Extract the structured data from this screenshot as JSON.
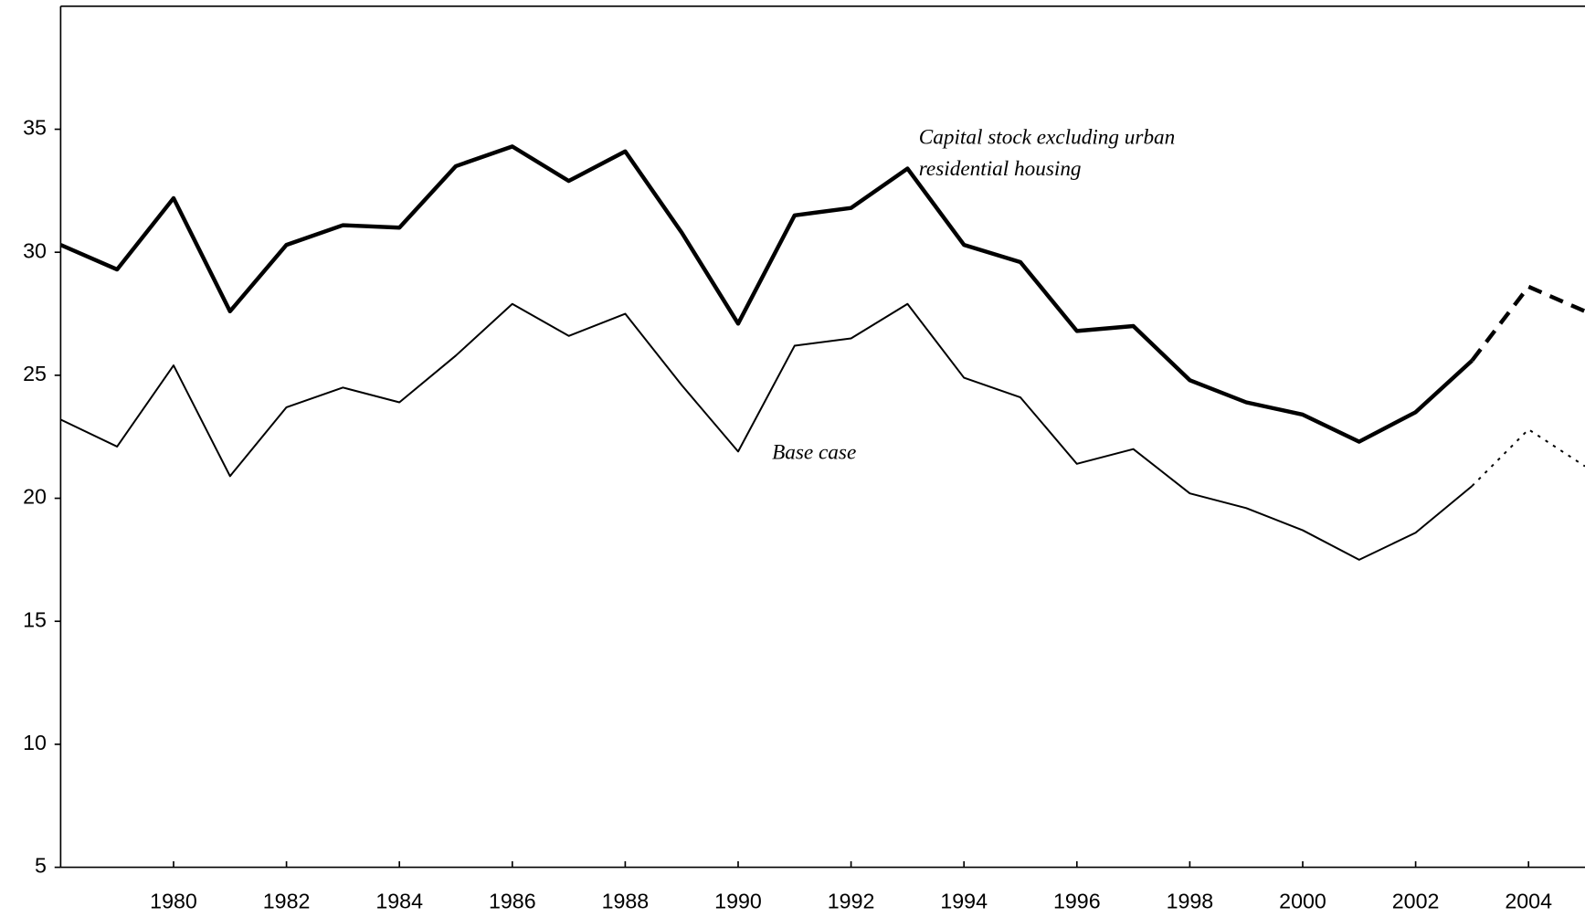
{
  "chart_data": {
    "type": "line",
    "x": [
      1978,
      1979,
      1980,
      1981,
      1982,
      1983,
      1984,
      1985,
      1986,
      1987,
      1988,
      1989,
      1990,
      1991,
      1992,
      1993,
      1994,
      1995,
      1996,
      1997,
      1998,
      1999,
      2000,
      2001,
      2002,
      2003,
      2004,
      2005
    ],
    "series": [
      {
        "color": "#000000",
        "width": 4,
        "style": "solid",
        "values": [
          30.3,
          29.3,
          32.2,
          27.6,
          30.3,
          31.1,
          31.0,
          33.5,
          34.3,
          32.9,
          34.1,
          30.8,
          27.1,
          31.5,
          31.8,
          33.4,
          30.3,
          29.6,
          26.8,
          27.0,
          24.8,
          23.9,
          23.4,
          22.3,
          23.5,
          25.6,
          null,
          null
        ]
      },
      {
        "color": "#000000",
        "width": 4,
        "style": "dashed",
        "values": [
          null,
          null,
          null,
          null,
          null,
          null,
          null,
          null,
          null,
          null,
          null,
          null,
          null,
          null,
          null,
          null,
          null,
          null,
          null,
          null,
          null,
          null,
          null,
          null,
          null,
          25.6,
          28.6,
          27.6
        ]
      },
      {
        "color": "#000000",
        "width": 1.8,
        "style": "solid",
        "values": [
          23.2,
          22.1,
          25.4,
          20.9,
          23.7,
          24.5,
          23.9,
          25.8,
          27.9,
          26.6,
          27.5,
          24.6,
          21.9,
          26.2,
          26.5,
          27.9,
          24.9,
          24.1,
          21.4,
          22.0,
          20.2,
          19.6,
          18.7,
          17.5,
          18.6,
          20.5,
          null,
          null
        ]
      },
      {
        "color": "#000000",
        "width": 1.8,
        "style": "dotted",
        "values": [
          null,
          null,
          null,
          null,
          null,
          null,
          null,
          null,
          null,
          null,
          null,
          null,
          null,
          null,
          null,
          null,
          null,
          null,
          null,
          null,
          null,
          null,
          null,
          null,
          null,
          20.5,
          22.8,
          21.3
        ]
      }
    ],
    "annotations": [
      {
        "lines": [
          "Capital stock excluding urban",
          "residential housing"
        ],
        "x": 1993.2,
        "y": 34.6
      },
      {
        "lines": [
          "Base case"
        ],
        "x": 1990.6,
        "y": 21.8
      }
    ],
    "xlim": [
      1978,
      2005
    ],
    "xticks": [
      1980,
      1982,
      1984,
      1986,
      1988,
      1990,
      1992,
      1994,
      1996,
      1998,
      2000,
      2002,
      2004
    ],
    "ylim": [
      5,
      40
    ],
    "yticks": [
      5,
      10,
      15,
      20,
      25,
      30,
      35
    ]
  }
}
